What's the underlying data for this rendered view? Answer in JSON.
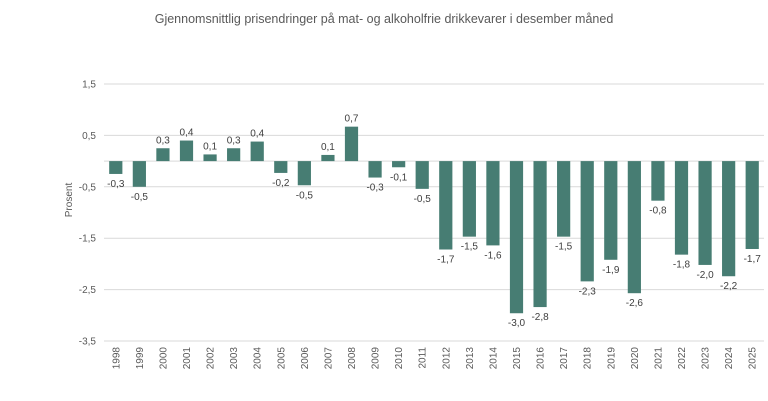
{
  "chart_data": {
    "type": "bar",
    "title": "Gjennomsnittlig prisendringer på mat- og alkoholfrie drikkevarer i desember måned",
    "xlabel": "",
    "ylabel": "Prosent",
    "ylim": [
      -3.5,
      1.5
    ],
    "yticks": [
      1.5,
      0.5,
      -0.5,
      -1.5,
      -2.5,
      -3.5
    ],
    "ytick_labels": [
      "1,5",
      "0,5",
      "-0,5",
      "-1,5",
      "-2,5",
      "-3,5"
    ],
    "categories": [
      "1998",
      "1999",
      "2000",
      "2001",
      "2002",
      "2003",
      "2004",
      "2005",
      "2006",
      "2007",
      "2008",
      "2009",
      "2010",
      "2011",
      "2012",
      "2013",
      "2014",
      "2015",
      "2016",
      "2017",
      "2018",
      "2019",
      "2020",
      "2021",
      "2022",
      "2023",
      "2024",
      "2025"
    ],
    "values": [
      -0.3,
      -0.5,
      0.3,
      0.4,
      0.1,
      0.3,
      0.4,
      -0.2,
      -0.5,
      0.1,
      0.7,
      -0.3,
      -0.1,
      -0.5,
      -1.7,
      -1.5,
      -1.6,
      -3.0,
      -2.8,
      -1.5,
      -2.3,
      -1.9,
      -2.6,
      -0.8,
      -1.8,
      -2.0,
      -2.2,
      -1.7
    ],
    "bar_heights": [
      -0.25,
      -0.5,
      0.25,
      0.4,
      0.13,
      0.25,
      0.38,
      -0.23,
      -0.47,
      0.12,
      0.67,
      -0.32,
      -0.12,
      -0.54,
      -1.72,
      -1.47,
      -1.64,
      -2.96,
      -2.84,
      -1.47,
      -2.34,
      -1.92,
      -2.57,
      -0.77,
      -1.82,
      -2.02,
      -2.24,
      -1.71
    ],
    "data_labels": [
      "-0,3",
      "-0,5",
      "0,3",
      "0,4",
      "0,1",
      "0,3",
      "0,4",
      "-0,2",
      "-0,5",
      "0,1",
      "0,7",
      "-0,3",
      "-0,1",
      "-0,5",
      "-1,7",
      "-1,5",
      "-1,6",
      "-3,0",
      "-2,8",
      "-1,5",
      "-2,3",
      "-1,9",
      "-2,6",
      "-0,8",
      "-1,8",
      "-2,0",
      "-2,2",
      "-1,7"
    ],
    "bar_color": "#477d73",
    "grid": true
  }
}
